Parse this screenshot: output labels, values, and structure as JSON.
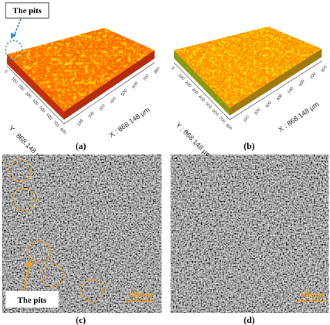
{
  "panels": [
    {
      "label": "(a)",
      "annotation": "The pits",
      "x_axis_label": "X : 868.148 µm",
      "y_axis_label": "Y : 868.148 µm",
      "x_ticks": [
        "100",
        "200",
        "300",
        "400",
        "500",
        "600",
        "700",
        "800"
      ],
      "y_ticks": [
        "0",
        "100",
        "200",
        "300",
        "400",
        "500",
        "600",
        "700",
        "800"
      ]
    },
    {
      "label": "(b)",
      "x_axis_label": "X : 868.148 µm",
      "y_axis_label": "Y : 868.148 µm",
      "x_ticks": [
        "100",
        "200",
        "300",
        "400",
        "500",
        "600",
        "700",
        "800"
      ],
      "y_ticks": [
        "0",
        "100",
        "200",
        "300",
        "400",
        "500",
        "600",
        "700",
        "800"
      ]
    },
    {
      "label": "(c)",
      "annotation": "The pits",
      "scale_bar": "100µm"
    },
    {
      "label": "(d)",
      "scale_bar": "100µm"
    }
  ]
}
